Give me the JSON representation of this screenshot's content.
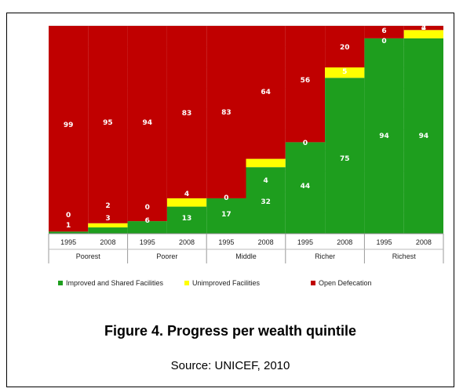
{
  "chart_data": {
    "type": "bar",
    "stacked": true,
    "x_axis": {
      "years": [
        "1995",
        "2008"
      ],
      "groups": [
        "Poorest",
        "Poorer",
        "Middle",
        "Richer",
        "Richest"
      ]
    },
    "ylim": [
      0,
      100
    ],
    "bars": [
      {
        "group": "Poorest",
        "year": "1995",
        "improved": 1,
        "unimproved": 0,
        "open": 99
      },
      {
        "group": "Poorest",
        "year": "2008",
        "improved": 3,
        "unimproved": 2,
        "open": 95
      },
      {
        "group": "Poorer",
        "year": "1995",
        "improved": 6,
        "unimproved": 0,
        "open": 94
      },
      {
        "group": "Poorer",
        "year": "2008",
        "improved": 13,
        "unimproved": 4,
        "open": 83
      },
      {
        "group": "Middle",
        "year": "1995",
        "improved": 17,
        "unimproved": 0,
        "open": 83
      },
      {
        "group": "Middle",
        "year": "2008",
        "improved": 32,
        "unimproved": 4,
        "open": 64
      },
      {
        "group": "Richer",
        "year": "1995",
        "improved": 44,
        "unimproved": 0,
        "open": 56
      },
      {
        "group": "Richer",
        "year": "2008",
        "improved": 75,
        "unimproved": 5,
        "open": 20
      },
      {
        "group": "Richest",
        "year": "1995",
        "improved": 94,
        "unimproved": 0,
        "open": 6
      },
      {
        "group": "Richest",
        "year": "2008",
        "improved": 94,
        "unimproved": 4,
        "open": 2
      }
    ],
    "series": [
      {
        "key": "improved",
        "name": "Improved and Shared Facilities",
        "color": "#1e9e1e"
      },
      {
        "key": "unimproved",
        "name": "Unimproved Facilities",
        "color": "#ffff00"
      },
      {
        "key": "open",
        "name": "Open Defecation",
        "color": "#c00000"
      }
    ],
    "legend_position": "bottom",
    "label_unimproved_2008_poorest": "2"
  },
  "caption": {
    "title": "Figure 4. Progress per wealth quintile",
    "source": "Source: UNICEF, 2010"
  }
}
